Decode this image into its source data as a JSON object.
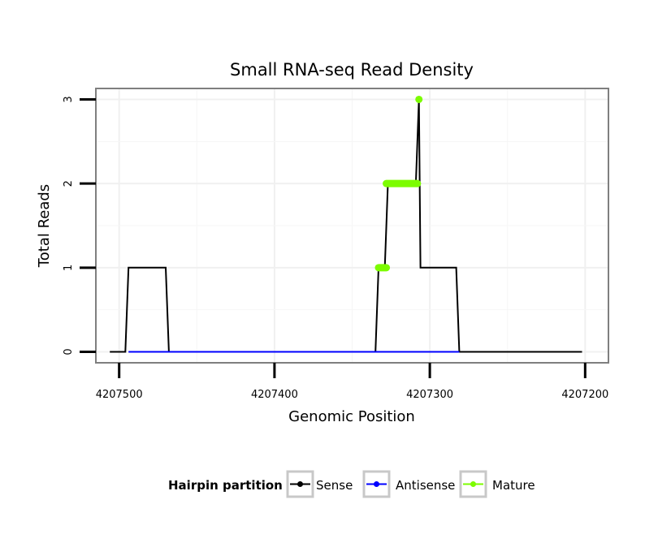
{
  "chart_data": {
    "type": "line",
    "title": "Small RNA-seq Read Density",
    "xlabel": "Genomic Position",
    "ylabel": "Total Reads",
    "x_reversed": true,
    "xlim": [
      4207515,
      4207185
    ],
    "ylim": [
      -0.13,
      3.13
    ],
    "x_ticks": [
      4207500,
      4207400,
      4207300,
      4207200
    ],
    "x_tick_labels": [
      "4207500",
      "4207400",
      "4207300",
      "4207200"
    ],
    "y_ticks": [
      0,
      1,
      2,
      3
    ],
    "y_tick_labels": [
      "0",
      "1",
      "2",
      "3"
    ],
    "grid": true,
    "legend": {
      "title": "Hairpin partition",
      "position": "bottom",
      "entries": [
        {
          "label": "Sense",
          "color": "#000000"
        },
        {
          "label": "Antisense",
          "color": "#0000ff"
        },
        {
          "label": "Mature",
          "color": "#7cfc00"
        }
      ]
    },
    "series": [
      {
        "name": "Sense",
        "color": "#000000",
        "points": [
          [
            4207506,
            0
          ],
          [
            4207496,
            0
          ],
          [
            4207494,
            1
          ],
          [
            4207470,
            1
          ],
          [
            4207468,
            0
          ],
          [
            4207335,
            0
          ],
          [
            4207333,
            1
          ],
          [
            4207329,
            1
          ],
          [
            4207327,
            2
          ],
          [
            4207309,
            2
          ],
          [
            4207307,
            3
          ],
          [
            4207306,
            1
          ],
          [
            4207283,
            1
          ],
          [
            4207281,
            0
          ],
          [
            4207202,
            0
          ]
        ]
      },
      {
        "name": "Antisense",
        "color": "#0000ff",
        "points": [
          [
            4207494,
            0
          ],
          [
            4207468,
            0
          ],
          [
            4207335,
            0
          ],
          [
            4207281,
            0
          ]
        ]
      },
      {
        "name": "Mature",
        "color": "#7cfc00",
        "segments": [
          {
            "x": [
              4207333,
              4207328
            ],
            "y": 1
          },
          {
            "x": [
              4207328,
              4207308
            ],
            "y": 2
          },
          {
            "x": [
              4207307,
              4207307
            ],
            "y": 3
          }
        ]
      }
    ]
  }
}
